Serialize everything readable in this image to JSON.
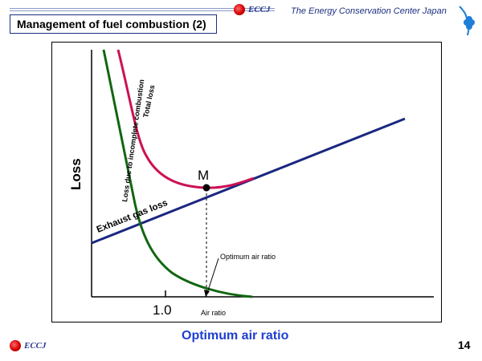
{
  "header": {
    "logo_text": "ECCJ",
    "org_name": "The Energy Conservation Center Japan",
    "slide_title": "Management of fuel combustion (2)"
  },
  "diagram": {
    "y_axis_label": "Loss",
    "x_tick_label": "1.0",
    "x_axis_label": "Air ratio",
    "point_label": "M",
    "curves": {
      "incomplete": "Loss due to incomplete combustion",
      "total": "Total loss",
      "exhaust": "Exhaust gas loss"
    },
    "annotation": "Optimum air ratio",
    "colors": {
      "incomplete": "#116611",
      "total": "#cc1155",
      "exhaust": "#1a2780"
    }
  },
  "footer": {
    "caption": "Optimum air ratio",
    "logo_text": "ECCJ",
    "page_number": "14"
  }
}
